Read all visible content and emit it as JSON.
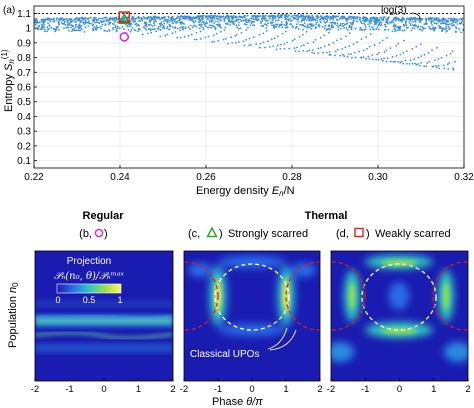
{
  "panel_a": {
    "panel_label": "(a)",
    "ylabel_text": "Entropy",
    "ylabel_symbol": "S",
    "ylabel_sub": "n",
    "ylabel_sup": "(1)",
    "xlabel_text": "Energy density",
    "xlabel_symbol": "E",
    "xlabel_sub": "n",
    "xlabel_tail": "/N",
    "log_label": "log(3)",
    "xticks": [
      "0.22",
      "0.24",
      "0.26",
      "0.28",
      "0.30",
      "0.32"
    ],
    "yticks": [
      "0.1",
      "0.2",
      "0.3",
      "0.4",
      "0.5",
      "0.6",
      "0.7",
      "0.8",
      "0.9",
      "1",
      "1.1"
    ]
  },
  "panel_b": {
    "title": "Regular",
    "tag_open": "(b,",
    "tag_close": ")",
    "projection_title": "Projection",
    "projection_formula": "𝒫ₙ(n₀, θ)/𝒫ₙᵐᵃˣ",
    "colorbar_ticks": [
      "0",
      "0.5",
      "1"
    ],
    "ylabel_text": "Population",
    "ylabel_symbol": "n",
    "ylabel_sub": "0"
  },
  "panel_c": {
    "group_title": "Thermal",
    "tag_open": "(c,",
    "tag_close": ")",
    "title": "Strongly scarred",
    "annotation": "Classical UPOs"
  },
  "panel_d": {
    "tag_open": "(d,",
    "tag_close": ")",
    "title": "Weakly scarred"
  },
  "bottom_axes": {
    "xticks": [
      "-2",
      "-1",
      "0",
      "1",
      "2"
    ],
    "xlabel_text": "Phase",
    "xlabel_symbol": "θ/π"
  },
  "colors": {
    "scatter_point": "#3a8fd9",
    "regular_marker": "#e020e0",
    "strong_marker": "#22aa22",
    "weak_marker": "#dd2222",
    "upo_red": "#d42020",
    "upo_white": "#ffffff",
    "heatmap_low": "#1a1bb0",
    "heatmap_high": "#fff65a"
  },
  "chart_data": {
    "type": "scatter",
    "title": "",
    "xlabel": "Energy density E_n/N",
    "ylabel": "Entropy S_n^(1)",
    "xlim": [
      0.22,
      0.32
    ],
    "ylim": [
      0.05,
      1.15
    ],
    "reference_line": {
      "label": "log(3)",
      "y": 1.0986
    },
    "bulk_band": [
      [
        0.22,
        1.06
      ],
      [
        0.24,
        1.07
      ],
      [
        0.26,
        1.08
      ],
      [
        0.28,
        1.085
      ],
      [
        0.3,
        1.07
      ],
      [
        0.32,
        1.06
      ]
    ],
    "tower_envelope": [
      [
        0.225,
        1.0
      ],
      [
        0.235,
        0.96
      ],
      [
        0.241,
        0.94
      ],
      [
        0.25,
        0.83
      ],
      [
        0.26,
        0.68
      ],
      [
        0.27,
        0.5
      ],
      [
        0.28,
        0.34
      ],
      [
        0.29,
        0.22
      ],
      [
        0.3,
        0.1
      ]
    ],
    "markers": [
      {
        "label": "Regular (b)",
        "symbol": "circle",
        "x": 0.241,
        "y": 0.94
      },
      {
        "label": "Strongly scarred (c)",
        "symbol": "triangle",
        "x": 0.241,
        "y": 1.06
      },
      {
        "label": "Weakly scarred (d)",
        "symbol": "square",
        "x": 0.241,
        "y": 1.075
      }
    ],
    "grid": true
  }
}
